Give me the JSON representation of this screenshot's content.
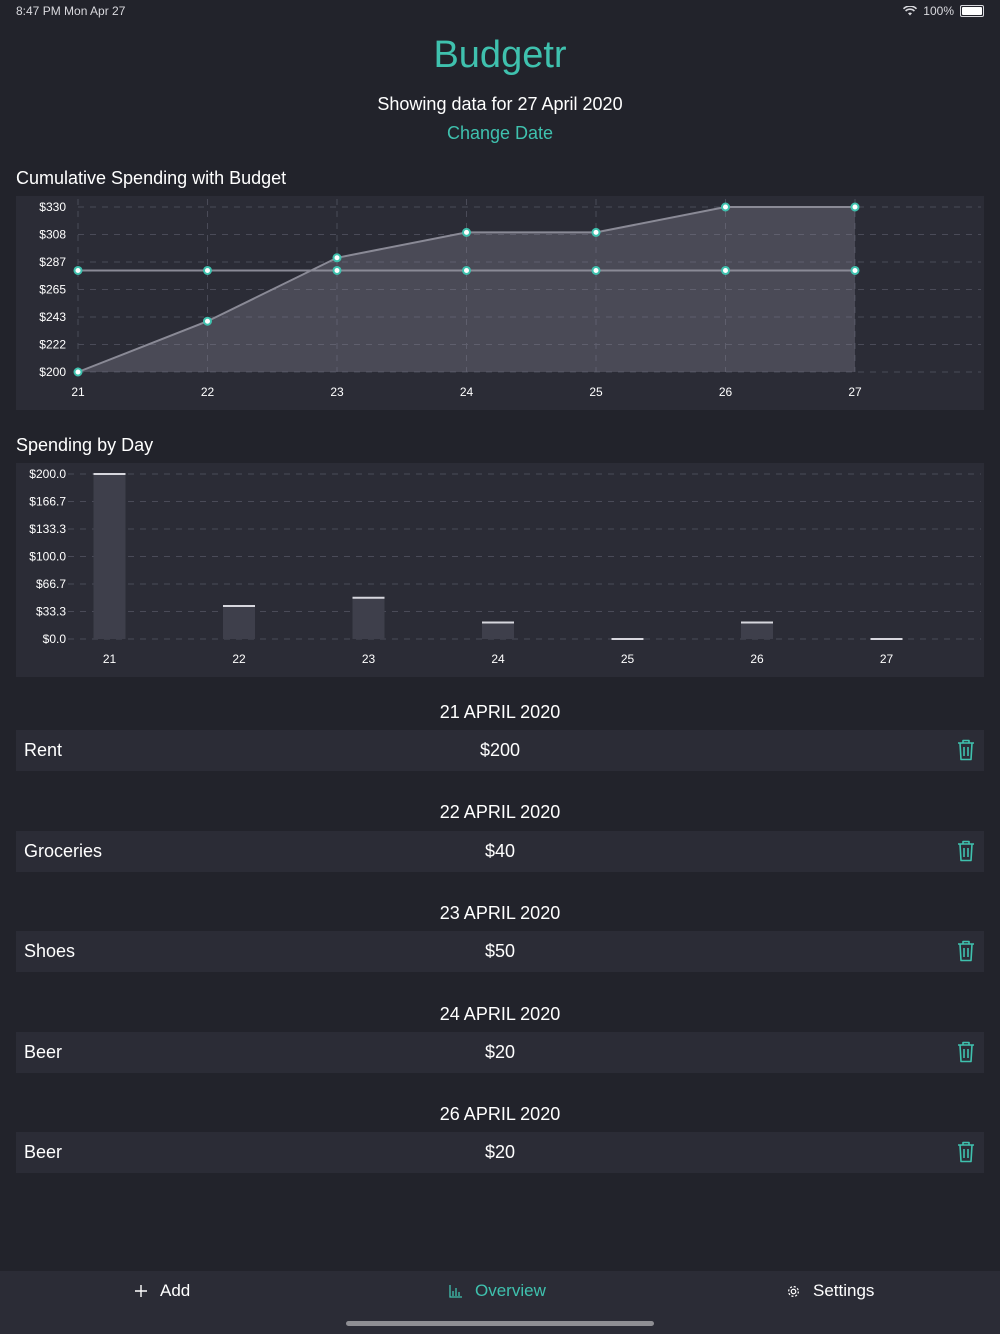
{
  "status_bar": {
    "time": "8:47 PM  Mon Apr 27",
    "battery": "100%"
  },
  "header": {
    "title": "Budgetr",
    "subtitle": "Showing data for 27 April 2020",
    "change_date_label": "Change Date"
  },
  "colors": {
    "accent": "#3fc1ae",
    "background": "#22232b",
    "panel": "#2b2c36"
  },
  "charts": {
    "cumulative_title": "Cumulative Spending with Budget",
    "daily_title": "Spending by Day"
  },
  "chart_data": [
    {
      "type": "line",
      "title": "Cumulative Spending with Budget",
      "x": [
        "21",
        "22",
        "23",
        "24",
        "25",
        "26",
        "27"
      ],
      "y_ticks": [
        "$330",
        "$308",
        "$287",
        "$265",
        "$243",
        "$222",
        "$200"
      ],
      "ylim": [
        200,
        330
      ],
      "grid": true,
      "series": [
        {
          "values": [
            200,
            240,
            290,
            310,
            310,
            330,
            330
          ],
          "filled": true
        },
        {
          "values": [
            280,
            280,
            280,
            280,
            280,
            280,
            280
          ],
          "filled": false
        }
      ]
    },
    {
      "type": "bar",
      "title": "Spending by Day",
      "categories": [
        "21",
        "22",
        "23",
        "24",
        "25",
        "26",
        "27"
      ],
      "y_ticks": [
        "$200.0",
        "$166.7",
        "$133.3",
        "$100.0",
        "$66.7",
        "$33.3",
        "$0.0"
      ],
      "ylim": [
        0,
        200
      ],
      "values": [
        200,
        40,
        50,
        20,
        0,
        20,
        0
      ],
      "grid": true
    }
  ],
  "expenses": [
    {
      "date": "21 APRIL 2020",
      "items": [
        {
          "name": "Rent",
          "amount": "$200"
        }
      ]
    },
    {
      "date": "22 APRIL 2020",
      "items": [
        {
          "name": "Groceries",
          "amount": "$40"
        }
      ]
    },
    {
      "date": "23 APRIL 2020",
      "items": [
        {
          "name": "Shoes",
          "amount": "$50"
        }
      ]
    },
    {
      "date": "24 APRIL 2020",
      "items": [
        {
          "name": "Beer",
          "amount": "$20"
        }
      ]
    },
    {
      "date": "26 APRIL 2020",
      "items": [
        {
          "name": "Beer",
          "amount": "$20"
        }
      ]
    }
  ],
  "tabbar": {
    "add": "Add",
    "add_icon": "plus-icon",
    "overview": "Overview",
    "overview_icon": "bar-chart-icon",
    "settings": "Settings",
    "settings_icon": "gear-icon",
    "selected": "Overview"
  }
}
